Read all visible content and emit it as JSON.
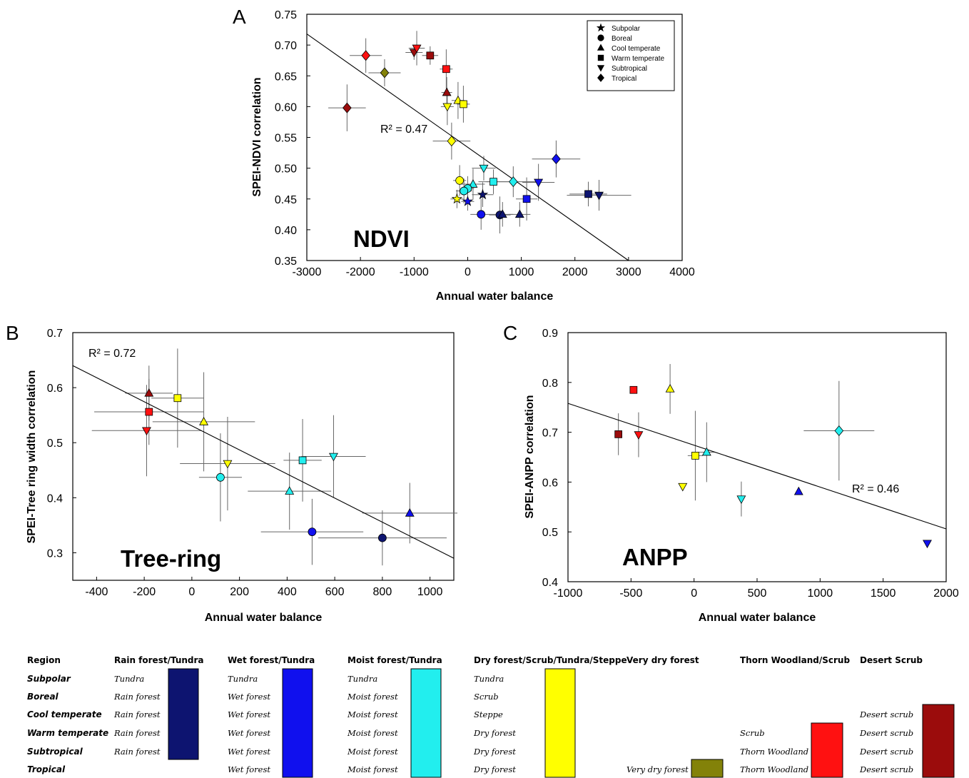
{
  "colors": {
    "dark_navy": "#0d1470",
    "blue": "#1010ee",
    "cyan": "#22eeee",
    "yellow": "#ffff00",
    "olive": "#838209",
    "red": "#ff1111",
    "dark_red": "#9b0c0c"
  },
  "legend": {
    "items": [
      {
        "label": "Subpolar",
        "shape": "star"
      },
      {
        "label": "Boreal",
        "shape": "circle"
      },
      {
        "label": "Cool temperate",
        "shape": "triangle-up"
      },
      {
        "label": "Warm temperate",
        "shape": "square"
      },
      {
        "label": "Subtropical",
        "shape": "triangle-down"
      },
      {
        "label": "Tropical",
        "shape": "diamond"
      }
    ]
  },
  "chart_data": [
    {
      "panel": "A",
      "type": "scatter",
      "xlabel": "Annual water balance",
      "ylabel": "SPEI-NDVI correlation",
      "annotation": "NDVI",
      "r2_label": "R² = 0.47",
      "xlim": [
        -3000,
        4000
      ],
      "ylim": [
        0.35,
        0.75
      ],
      "xticks": [
        -3000,
        -2000,
        -1000,
        0,
        1000,
        2000,
        3000,
        4000
      ],
      "yticks": [
        0.35,
        0.4,
        0.45,
        0.5,
        0.55,
        0.6,
        0.65,
        0.7,
        0.75
      ],
      "ytick_labels": [
        "0.35",
        "0.40",
        "0.45",
        "0.50",
        "0.55",
        "0.60",
        "0.65",
        "0.70",
        "0.75"
      ],
      "fit_line": [
        [
          -3000,
          0.718
        ],
        [
          3000,
          0.35
        ]
      ],
      "points": [
        {
          "x": -1000,
          "y": 0.688,
          "shape": "triangle-down",
          "color": "#9b0c0c",
          "xerr": 160,
          "yerr": 0.012
        },
        {
          "x": -950,
          "y": 0.695,
          "shape": "triangle-down",
          "color": "#ff1111",
          "xerr": 150,
          "yerr": 0.028
        },
        {
          "x": -700,
          "y": 0.683,
          "shape": "square",
          "color": "#9b0c0c",
          "xerr": 150,
          "yerr": 0.015
        },
        {
          "x": -1900,
          "y": 0.683,
          "shape": "diamond",
          "color": "#ff1111",
          "xerr": 300,
          "yerr": 0.028
        },
        {
          "x": -1550,
          "y": 0.655,
          "shape": "diamond",
          "color": "#838209",
          "xerr": 300,
          "yerr": 0.022
        },
        {
          "x": -400,
          "y": 0.661,
          "shape": "square",
          "color": "#ff1111",
          "xerr": 120,
          "yerr": 0.032
        },
        {
          "x": -390,
          "y": 0.623,
          "shape": "triangle-up",
          "color": "#9b0c0c",
          "xerr": 100,
          "yerr": 0.025
        },
        {
          "x": -2250,
          "y": 0.598,
          "shape": "diamond",
          "color": "#9b0c0c",
          "xerr": 350,
          "yerr": 0.038
        },
        {
          "x": -180,
          "y": 0.61,
          "shape": "triangle-up",
          "color": "#ffff00",
          "xerr": 120,
          "yerr": 0.03
        },
        {
          "x": -380,
          "y": 0.6,
          "shape": "triangle-down",
          "color": "#ffff00",
          "xerr": 120,
          "yerr": 0.03
        },
        {
          "x": -80,
          "y": 0.604,
          "shape": "square",
          "color": "#ffff00",
          "xerr": 120,
          "yerr": 0.03
        },
        {
          "x": -300,
          "y": 0.544,
          "shape": "diamond",
          "color": "#ffff00",
          "xerr": 350,
          "yerr": 0.03
        },
        {
          "x": 300,
          "y": 0.5,
          "shape": "triangle-down",
          "color": "#22eeee",
          "xerr": 220,
          "yerr": 0.02
        },
        {
          "x": 1650,
          "y": 0.515,
          "shape": "diamond",
          "color": "#1010ee",
          "xerr": 450,
          "yerr": 0.03
        },
        {
          "x": 850,
          "y": 0.478,
          "shape": "diamond",
          "color": "#22eeee",
          "xerr": 500,
          "yerr": 0.025
        },
        {
          "x": 480,
          "y": 0.478,
          "shape": "square",
          "color": "#22eeee",
          "xerr": 280,
          "yerr": 0.02
        },
        {
          "x": 1320,
          "y": 0.477,
          "shape": "triangle-down",
          "color": "#1010ee",
          "xerr": 300,
          "yerr": 0.03
        },
        {
          "x": -150,
          "y": 0.48,
          "shape": "circle",
          "color": "#ffff00",
          "xerr": 120,
          "yerr": 0.025
        },
        {
          "x": 100,
          "y": 0.474,
          "shape": "triangle-up",
          "color": "#22eeee",
          "xerr": 220,
          "yerr": 0.025
        },
        {
          "x": 0,
          "y": 0.467,
          "shape": "circle",
          "color": "#22eeee",
          "xerr": 120,
          "yerr": 0.02
        },
        {
          "x": -70,
          "y": 0.463,
          "shape": "circle",
          "color": "#22eeee",
          "xerr": 150,
          "yerr": 0.02
        },
        {
          "x": 280,
          "y": 0.457,
          "shape": "star",
          "color": "#0d1470",
          "xerr": 200,
          "yerr": 0.02
        },
        {
          "x": -200,
          "y": 0.45,
          "shape": "star",
          "color": "#ffff00",
          "xerr": 120,
          "yerr": 0.015
        },
        {
          "x": 0,
          "y": 0.446,
          "shape": "star",
          "color": "#1010ee",
          "xerr": 120,
          "yerr": 0.015
        },
        {
          "x": 1100,
          "y": 0.45,
          "shape": "square",
          "color": "#1010ee",
          "xerr": 200,
          "yerr": 0.035
        },
        {
          "x": 2250,
          "y": 0.458,
          "shape": "square",
          "color": "#0d1470",
          "xerr": 350,
          "yerr": 0.02
        },
        {
          "x": 2450,
          "y": 0.456,
          "shape": "triangle-down",
          "color": "#0d1470",
          "xerr": 600,
          "yerr": 0.025
        },
        {
          "x": 250,
          "y": 0.425,
          "shape": "circle",
          "color": "#1010ee",
          "xerr": 200,
          "yerr": 0.025
        },
        {
          "x": 600,
          "y": 0.424,
          "shape": "circle",
          "color": "#0d1470",
          "xerr": 200,
          "yerr": 0.03
        },
        {
          "x": 650,
          "y": 0.425,
          "shape": "triangle-up",
          "color": "#0d1470",
          "xerr": 200,
          "yerr": 0.02
        },
        {
          "x": 970,
          "y": 0.425,
          "shape": "triangle-up",
          "color": "#0d1470",
          "xerr": 200,
          "yerr": 0.02
        }
      ]
    },
    {
      "panel": "B",
      "type": "scatter",
      "xlabel": "Annual water balance",
      "ylabel": "SPEI-Tree ring width correlation",
      "annotation": "Tree-ring",
      "r2_label": "R² = 0.72",
      "xlim": [
        -500,
        1100
      ],
      "ylim": [
        0.25,
        0.7
      ],
      "xticks": [
        -400,
        -200,
        0,
        200,
        400,
        600,
        800,
        1000
      ],
      "yticks": [
        0.3,
        0.4,
        0.5,
        0.6,
        0.7
      ],
      "ytick_labels": [
        "0.3",
        "0.4",
        "0.5",
        "0.6",
        "0.7"
      ],
      "fit_line": [
        [
          -500,
          0.64
        ],
        [
          1100,
          0.29
        ]
      ],
      "points": [
        {
          "x": -180,
          "y": 0.59,
          "shape": "triangle-up",
          "color": "#9b0c0c",
          "xerr": 100,
          "yerr": 0.05
        },
        {
          "x": -60,
          "y": 0.581,
          "shape": "square",
          "color": "#ffff00",
          "xerr": 110,
          "yerr": 0.09
        },
        {
          "x": -180,
          "y": 0.556,
          "shape": "square",
          "color": "#ff1111",
          "xerr": 230,
          "yerr": 0.06
        },
        {
          "x": -190,
          "y": 0.522,
          "shape": "triangle-down",
          "color": "#ff1111",
          "xerr": 230,
          "yerr": 0.083
        },
        {
          "x": 50,
          "y": 0.538,
          "shape": "triangle-up",
          "color": "#ffff00",
          "xerr": 215,
          "yerr": 0.09
        },
        {
          "x": 150,
          "y": 0.462,
          "shape": "triangle-down",
          "color": "#ffff00",
          "xerr": 200,
          "yerr": 0.085
        },
        {
          "x": 120,
          "y": 0.437,
          "shape": "circle",
          "color": "#22eeee",
          "xerr": 90,
          "yerr": 0.08
        },
        {
          "x": 465,
          "y": 0.468,
          "shape": "square",
          "color": "#22eeee",
          "xerr": 80,
          "yerr": 0.075
        },
        {
          "x": 595,
          "y": 0.475,
          "shape": "triangle-down",
          "color": "#22eeee",
          "xerr": 135,
          "yerr": 0.075
        },
        {
          "x": 410,
          "y": 0.412,
          "shape": "triangle-up",
          "color": "#22eeee",
          "xerr": 175,
          "yerr": 0.07
        },
        {
          "x": 505,
          "y": 0.338,
          "shape": "circle",
          "color": "#1010ee",
          "xerr": 215,
          "yerr": 0.06
        },
        {
          "x": 800,
          "y": 0.327,
          "shape": "circle",
          "color": "#0d1470",
          "xerr": 270,
          "yerr": 0.05
        },
        {
          "x": 915,
          "y": 0.372,
          "shape": "triangle-up",
          "color": "#1010ee",
          "xerr": 200,
          "yerr": 0.055
        }
      ]
    },
    {
      "panel": "C",
      "type": "scatter",
      "xlabel": "Annual water balance",
      "ylabel": "SPEI-ANPP correlation",
      "annotation": "ANPP",
      "r2_label": "R² = 0.46",
      "xlim": [
        -1000,
        2000
      ],
      "ylim": [
        0.4,
        0.9
      ],
      "xticks": [
        -1000,
        -500,
        0,
        500,
        1000,
        1500,
        2000
      ],
      "yticks": [
        0.4,
        0.5,
        0.6,
        0.7,
        0.8,
        0.9
      ],
      "ytick_labels": [
        "0.4",
        "0.5",
        "0.6",
        "0.7",
        "0.8",
        "0.9"
      ],
      "fit_line": [
        [
          -1000,
          0.758
        ],
        [
          2000,
          0.506
        ]
      ],
      "points": [
        {
          "x": -480,
          "y": 0.785,
          "shape": "square",
          "color": "#ff1111",
          "xerr": 0,
          "yerr": 0
        },
        {
          "x": -190,
          "y": 0.787,
          "shape": "triangle-up",
          "color": "#ffff00",
          "xerr": 0,
          "yerr": 0.05
        },
        {
          "x": -600,
          "y": 0.696,
          "shape": "square",
          "color": "#9b0c0c",
          "xerr": 0,
          "yerr": 0.042
        },
        {
          "x": -440,
          "y": 0.695,
          "shape": "triangle-down",
          "color": "#ff1111",
          "xerr": 0,
          "yerr": 0.045
        },
        {
          "x": 10,
          "y": 0.653,
          "shape": "square",
          "color": "#ffff00",
          "xerr": 60,
          "yerr": 0.09
        },
        {
          "x": 100,
          "y": 0.66,
          "shape": "triangle-up",
          "color": "#22eeee",
          "xerr": 70,
          "yerr": 0.06
        },
        {
          "x": 1150,
          "y": 0.703,
          "shape": "diamond",
          "color": "#22eeee",
          "xerr": 280,
          "yerr": 0.1
        },
        {
          "x": -90,
          "y": 0.591,
          "shape": "triangle-down",
          "color": "#ffff00",
          "xerr": 0,
          "yerr": 0
        },
        {
          "x": 375,
          "y": 0.566,
          "shape": "triangle-down",
          "color": "#22eeee",
          "xerr": 0,
          "yerr": 0.035
        },
        {
          "x": 830,
          "y": 0.581,
          "shape": "triangle-up",
          "color": "#1010ee",
          "xerr": 0,
          "yerr": 0
        },
        {
          "x": 1850,
          "y": 0.477,
          "shape": "triangle-down",
          "color": "#1010ee",
          "xerr": 0,
          "yerr": 0
        }
      ]
    }
  ],
  "region_key": {
    "region_header": "Region",
    "rows": [
      "Subpolar",
      "Boreal",
      "Cool temperate",
      "Warm temperate",
      "Subtropical",
      "Tropical"
    ],
    "columns": [
      {
        "header": "Rain forest/Tundra",
        "cells": [
          "Tundra",
          "Rain forest",
          "Rain forest",
          "Rain forest",
          "Rain forest",
          ""
        ],
        "color": "#0d1470",
        "span": [
          0,
          4
        ]
      },
      {
        "header": "Wet forest/Tundra",
        "cells": [
          "Tundra",
          "Wet forest",
          "Wet forest",
          "Wet forest",
          "Wet forest",
          "Wet forest"
        ],
        "color": "#1010ee",
        "span": [
          0,
          5
        ]
      },
      {
        "header": "Moist forest/Tundra",
        "cells": [
          "Tundra",
          "Moist forest",
          "Moist forest",
          "Moist forest",
          "Moist forest",
          "Moist forest"
        ],
        "color": "#22eeee",
        "span": [
          0,
          5
        ]
      },
      {
        "header": "Dry forest/Scrub/Tundra/Steppe",
        "cells": [
          "Tundra",
          "Scrub",
          "Steppe",
          "Dry forest",
          "Dry forest",
          "Dry forest"
        ],
        "color": "#ffff00",
        "span": [
          0,
          5
        ]
      },
      {
        "header": "Very dry forest",
        "cells": [
          "",
          "",
          "",
          "",
          "",
          "Very dry forest"
        ],
        "color": "#838209",
        "span": [
          5,
          5
        ]
      },
      {
        "header": "Thorn Woodland/Scrub",
        "cells": [
          "",
          "",
          "",
          "Scrub",
          "Thorn Woodland",
          "Thorn Woodland"
        ],
        "color": "#ff1111",
        "span": [
          3,
          5
        ]
      },
      {
        "header": "Desert Scrub",
        "cells": [
          "",
          "",
          "Desert scrub",
          "Desert scrub",
          "Desert scrub",
          "Desert scrub"
        ],
        "color": "#9b0c0c",
        "span": [
          2,
          5
        ]
      }
    ]
  }
}
